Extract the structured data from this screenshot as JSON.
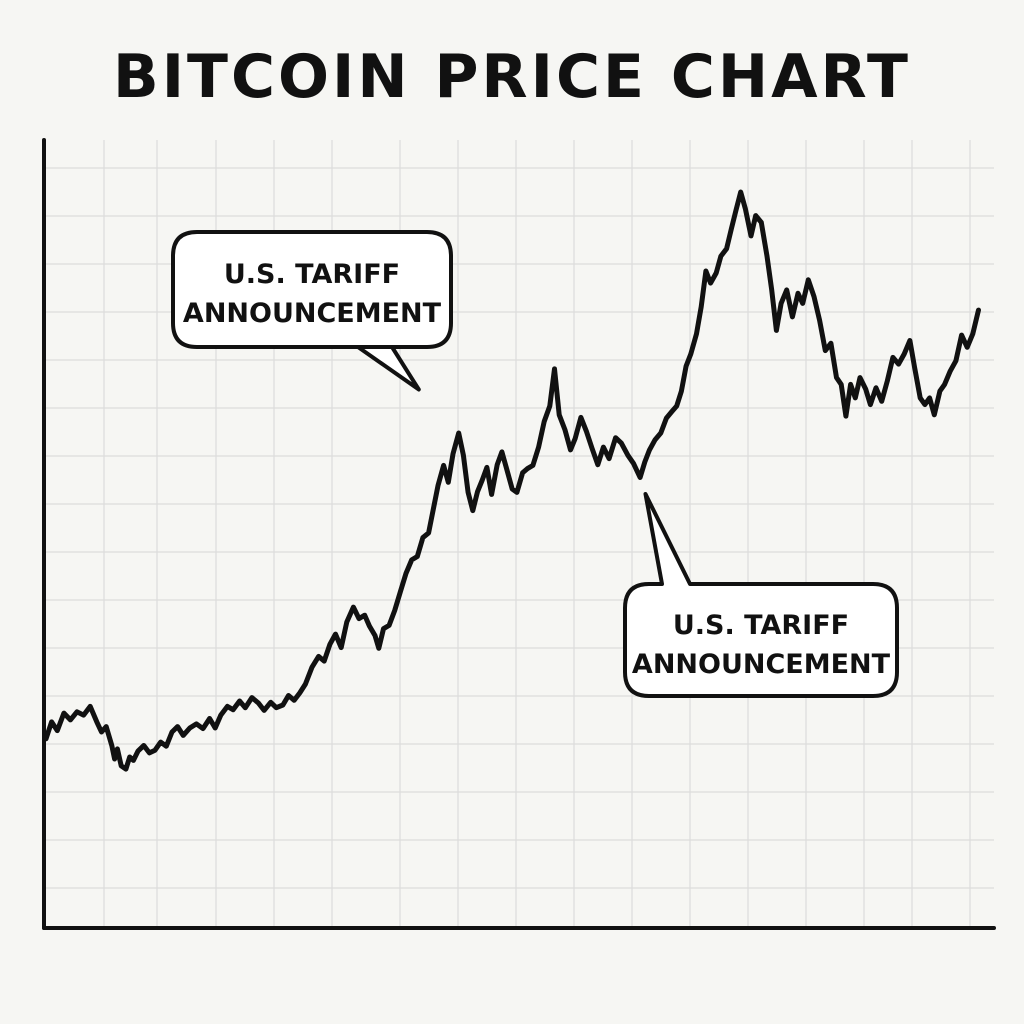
{
  "colors": {
    "background": "#f6f6f3",
    "line": "#111111",
    "grid": "#dcdcdc",
    "axis": "#111111"
  },
  "chart_data": {
    "type": "line",
    "title": "BITCOIN PRICE CHART",
    "xlabel": "",
    "ylabel": "",
    "grid": true,
    "legend": "none",
    "ylim": [
      0,
      100
    ],
    "xlim": [
      0,
      100
    ],
    "series": [
      {
        "values": [
          [
            0.0,
            15.0
          ],
          [
            0.6,
            17.5
          ],
          [
            1.2,
            16.2
          ],
          [
            1.9,
            18.8
          ],
          [
            2.6,
            17.8
          ],
          [
            3.3,
            19.0
          ],
          [
            4.0,
            18.5
          ],
          [
            4.7,
            19.8
          ],
          [
            5.4,
            17.5
          ],
          [
            5.9,
            16.0
          ],
          [
            6.4,
            16.8
          ],
          [
            7.0,
            14.0
          ],
          [
            7.3,
            12.0
          ],
          [
            7.6,
            13.5
          ],
          [
            8.0,
            11.0
          ],
          [
            8.5,
            10.5
          ],
          [
            8.9,
            12.3
          ],
          [
            9.3,
            11.8
          ],
          [
            9.8,
            13.2
          ],
          [
            10.4,
            14.0
          ],
          [
            11.0,
            12.9
          ],
          [
            11.6,
            13.3
          ],
          [
            12.2,
            14.5
          ],
          [
            12.8,
            13.9
          ],
          [
            13.4,
            16.0
          ],
          [
            14.0,
            16.8
          ],
          [
            14.6,
            15.5
          ],
          [
            15.3,
            16.6
          ],
          [
            16.0,
            17.2
          ],
          [
            16.7,
            16.5
          ],
          [
            17.4,
            18.0
          ],
          [
            18.0,
            16.6
          ],
          [
            18.6,
            18.5
          ],
          [
            19.3,
            19.8
          ],
          [
            19.9,
            19.3
          ],
          [
            20.6,
            20.6
          ],
          [
            21.2,
            19.6
          ],
          [
            21.9,
            21.1
          ],
          [
            22.6,
            20.3
          ],
          [
            23.2,
            19.2
          ],
          [
            23.9,
            20.4
          ],
          [
            24.5,
            19.6
          ],
          [
            25.2,
            20.0
          ],
          [
            25.8,
            21.4
          ],
          [
            26.4,
            20.7
          ],
          [
            27.0,
            21.8
          ],
          [
            27.6,
            23.1
          ],
          [
            28.3,
            25.6
          ],
          [
            29.0,
            27.2
          ],
          [
            29.6,
            26.5
          ],
          [
            30.2,
            29.0
          ],
          [
            30.8,
            30.5
          ],
          [
            31.4,
            28.5
          ],
          [
            32.0,
            32.3
          ],
          [
            32.7,
            34.5
          ],
          [
            33.3,
            32.8
          ],
          [
            33.9,
            33.3
          ],
          [
            34.4,
            31.7
          ],
          [
            35.0,
            30.3
          ],
          [
            35.4,
            28.4
          ],
          [
            35.9,
            31.3
          ],
          [
            36.5,
            31.8
          ],
          [
            37.1,
            34.0
          ],
          [
            37.7,
            36.8
          ],
          [
            38.3,
            39.5
          ],
          [
            38.9,
            41.5
          ],
          [
            39.5,
            42.0
          ],
          [
            40.1,
            44.8
          ],
          [
            40.7,
            45.5
          ],
          [
            41.2,
            49.0
          ],
          [
            41.7,
            52.5
          ],
          [
            42.3,
            55.5
          ],
          [
            42.8,
            53.0
          ],
          [
            43.3,
            57.2
          ],
          [
            43.9,
            60.3
          ],
          [
            44.4,
            57.0
          ],
          [
            44.9,
            51.5
          ],
          [
            45.4,
            48.8
          ],
          [
            45.9,
            51.6
          ],
          [
            46.4,
            53.3
          ],
          [
            46.9,
            55.2
          ],
          [
            47.4,
            51.2
          ],
          [
            48.0,
            55.6
          ],
          [
            48.5,
            57.5
          ],
          [
            49.0,
            55.0
          ],
          [
            49.6,
            52.0
          ],
          [
            50.1,
            51.5
          ],
          [
            50.7,
            54.4
          ],
          [
            51.2,
            55.0
          ],
          [
            51.8,
            55.5
          ],
          [
            52.4,
            58.2
          ],
          [
            53.0,
            62.0
          ],
          [
            53.6,
            64.3
          ],
          [
            54.1,
            69.8
          ],
          [
            54.6,
            63.0
          ],
          [
            55.2,
            60.8
          ],
          [
            55.8,
            57.8
          ],
          [
            56.3,
            59.5
          ],
          [
            56.9,
            62.6
          ],
          [
            57.5,
            60.5
          ],
          [
            58.1,
            58.0
          ],
          [
            58.7,
            55.6
          ],
          [
            59.3,
            58.2
          ],
          [
            59.9,
            56.5
          ],
          [
            60.6,
            59.6
          ],
          [
            61.2,
            58.8
          ],
          [
            61.9,
            57.0
          ],
          [
            62.5,
            55.8
          ],
          [
            63.2,
            53.7
          ],
          [
            63.7,
            56.0
          ],
          [
            64.2,
            57.8
          ],
          [
            64.8,
            59.3
          ],
          [
            65.4,
            60.3
          ],
          [
            66.0,
            62.5
          ],
          [
            66.6,
            63.5
          ],
          [
            67.1,
            64.3
          ],
          [
            67.6,
            66.5
          ],
          [
            68.1,
            70.2
          ],
          [
            68.6,
            72.0
          ],
          [
            69.2,
            75.0
          ],
          [
            69.7,
            79.0
          ],
          [
            70.2,
            84.3
          ],
          [
            70.7,
            82.5
          ],
          [
            71.3,
            84.0
          ],
          [
            71.8,
            86.5
          ],
          [
            72.4,
            87.6
          ],
          [
            72.9,
            90.5
          ],
          [
            73.4,
            93.3
          ],
          [
            73.9,
            96.0
          ],
          [
            74.4,
            93.5
          ],
          [
            75.0,
            89.5
          ],
          [
            75.5,
            92.5
          ],
          [
            76.1,
            91.5
          ],
          [
            76.7,
            86.5
          ],
          [
            77.2,
            81.5
          ],
          [
            77.7,
            75.5
          ],
          [
            78.2,
            79.5
          ],
          [
            78.8,
            81.5
          ],
          [
            79.4,
            77.5
          ],
          [
            80.0,
            81.0
          ],
          [
            80.5,
            79.5
          ],
          [
            81.1,
            83.0
          ],
          [
            81.7,
            80.5
          ],
          [
            82.3,
            77.0
          ],
          [
            82.9,
            72.5
          ],
          [
            83.5,
            73.6
          ],
          [
            84.1,
            68.5
          ],
          [
            84.6,
            67.5
          ],
          [
            85.1,
            62.8
          ],
          [
            85.6,
            67.5
          ],
          [
            86.1,
            65.5
          ],
          [
            86.6,
            68.5
          ],
          [
            87.2,
            66.8
          ],
          [
            87.7,
            64.5
          ],
          [
            88.3,
            67.0
          ],
          [
            88.9,
            65.0
          ],
          [
            89.5,
            68.0
          ],
          [
            90.1,
            71.5
          ],
          [
            90.7,
            70.5
          ],
          [
            91.3,
            72.0
          ],
          [
            91.9,
            74.0
          ],
          [
            92.4,
            70.0
          ],
          [
            93.0,
            65.5
          ],
          [
            93.5,
            64.5
          ],
          [
            94.0,
            65.5
          ],
          [
            94.5,
            63.0
          ],
          [
            95.1,
            66.5
          ],
          [
            95.6,
            67.5
          ],
          [
            96.2,
            69.5
          ],
          [
            96.8,
            71.0
          ],
          [
            97.4,
            74.8
          ],
          [
            98.0,
            73.0
          ],
          [
            98.6,
            75.0
          ],
          [
            99.2,
            78.5
          ]
        ]
      }
    ],
    "annotations": [
      {
        "text_lines": [
          "U.S. TARIFF",
          "ANNOUNCEMENT"
        ],
        "x": 42.0,
        "y": 66.0,
        "box_position": "above-left"
      },
      {
        "text_lines": [
          "U.S. TARIFF",
          "ANNOUNCEMENT"
        ],
        "x": 62.5,
        "y": 52.0,
        "box_position": "below-right"
      }
    ]
  }
}
